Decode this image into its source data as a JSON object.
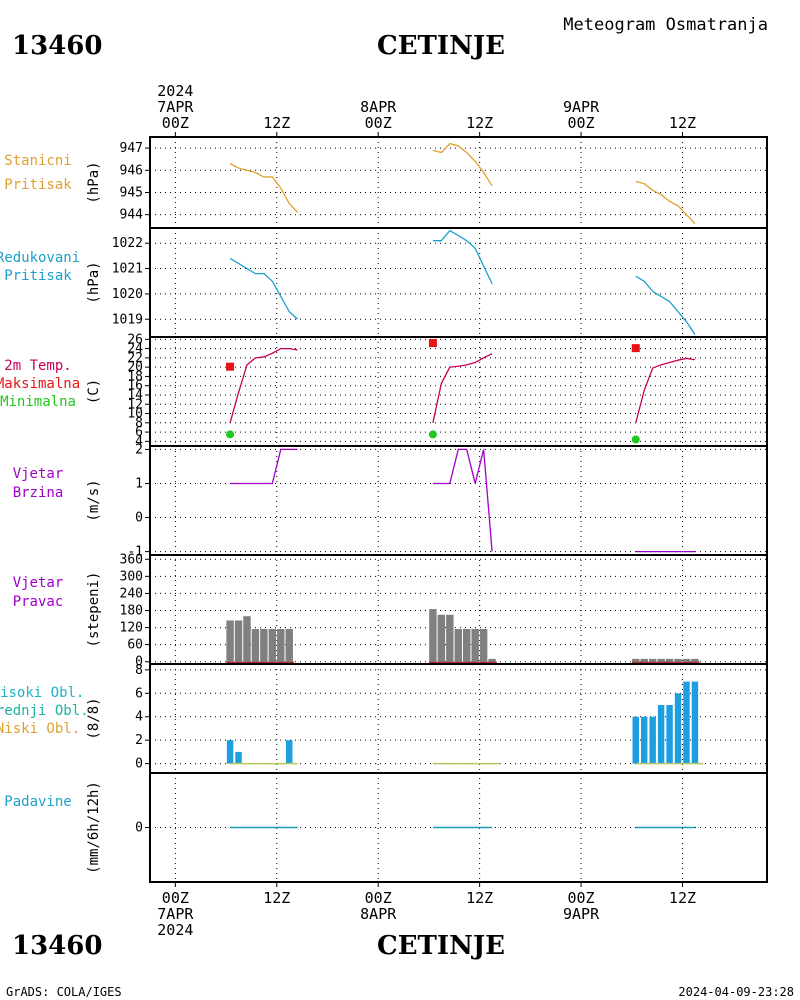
{
  "header": {
    "station_id": "13460",
    "station_name": "CETINJE",
    "product_title": "Meteogram Osmatranja"
  },
  "footer": {
    "station_id": "13460",
    "station_name": "CETINJE",
    "credit": "GrADS: COLA/IGES",
    "timestamp": "2024-04-09-23:28"
  },
  "time_axis": {
    "top_labels": [
      {
        "hour": 0,
        "lines": [
          "2024",
          "7APR",
          "00Z"
        ]
      },
      {
        "hour": 12,
        "lines": [
          "12Z"
        ]
      },
      {
        "hour": 24,
        "lines": [
          "8APR",
          "00Z"
        ]
      },
      {
        "hour": 36,
        "lines": [
          "12Z"
        ]
      },
      {
        "hour": 48,
        "lines": [
          "9APR",
          "00Z"
        ]
      },
      {
        "hour": 60,
        "lines": [
          "12Z"
        ]
      }
    ],
    "bottom_labels": [
      {
        "hour": 0,
        "lines": [
          "00Z",
          "7APR",
          "2024"
        ]
      },
      {
        "hour": 12,
        "lines": [
          "12Z"
        ]
      },
      {
        "hour": 24,
        "lines": [
          "00Z",
          "8APR"
        ]
      },
      {
        "hour": 36,
        "lines": [
          "12Z"
        ]
      },
      {
        "hour": 48,
        "lines": [
          "00Z",
          "9APR"
        ]
      },
      {
        "hour": 60,
        "lines": [
          "12Z"
        ]
      }
    ],
    "xlim": [
      -3,
      70
    ]
  },
  "colors": {
    "station_pressure": "#e0a030",
    "reduced_pressure": "#1ca0cc",
    "temperature": "#c8005a",
    "max_temp": "#e61414",
    "min_temp": "#1ec81e",
    "wind": "#a000c8",
    "direction_bars": "#808080",
    "direction_zero": "#b03030",
    "cloud_high": "#1c9ee0",
    "cloud_low": "#b4c864",
    "precip": "#1ca0b4",
    "precip_label": "#1ca0cc",
    "cloud_label_high": "#1cb4c8",
    "cloud_label_mid": "#1cb4a0",
    "cloud_label_low": "#e0a030",
    "wind_label": "#a000c8",
    "temp_label": "#e61414",
    "grid": "#000000"
  },
  "chart_data": [
    {
      "type": "line",
      "id": "station_pressure",
      "label_lines": [
        "Stanicni",
        "Pritisak"
      ],
      "ylabel": "(hPa)",
      "yticks": [
        944,
        945,
        946,
        947
      ],
      "ylim": [
        943.4,
        947.5
      ],
      "series": [
        {
          "values": [
            [
              6,
              946.3
            ],
            [
              7,
              946.1
            ],
            [
              8,
              946.0
            ],
            [
              9,
              945.9
            ],
            [
              10,
              945.7
            ],
            [
              11,
              945.7
            ],
            [
              12,
              945.2
            ],
            [
              13,
              944.5
            ],
            [
              14,
              944.1
            ]
          ]
        },
        {
          "values": [
            [
              30,
              946.9
            ],
            [
              31,
              946.8
            ],
            [
              32,
              947.2
            ],
            [
              33,
              947.1
            ],
            [
              34,
              946.8
            ],
            [
              35,
              946.4
            ],
            [
              36,
              945.9
            ],
            [
              37,
              945.3
            ]
          ]
        },
        {
          "values": [
            [
              54,
              945.5
            ],
            [
              55,
              945.4
            ],
            [
              56,
              945.1
            ],
            [
              57,
              944.9
            ],
            [
              58,
              944.6
            ],
            [
              59,
              944.4
            ],
            [
              60,
              944.0
            ],
            [
              61,
              943.6
            ]
          ]
        }
      ]
    },
    {
      "type": "line",
      "id": "reduced_pressure",
      "label_lines": [
        "Redukovani",
        "Pritisak"
      ],
      "ylabel": "(hPa)",
      "yticks": [
        1019,
        1020,
        1021,
        1022
      ],
      "ylim": [
        1018.3,
        1022.6
      ],
      "series": [
        {
          "values": [
            [
              6,
              1021.4
            ],
            [
              7,
              1021.2
            ],
            [
              8,
              1021.0
            ],
            [
              9,
              1020.8
            ],
            [
              10,
              1020.8
            ],
            [
              11,
              1020.5
            ],
            [
              12,
              1019.9
            ],
            [
              13,
              1019.3
            ],
            [
              14,
              1019.0
            ]
          ]
        },
        {
          "values": [
            [
              30,
              1022.1
            ],
            [
              31,
              1022.1
            ],
            [
              32,
              1022.5
            ],
            [
              33,
              1022.3
            ],
            [
              34,
              1022.1
            ],
            [
              35,
              1021.8
            ],
            [
              36,
              1021.1
            ],
            [
              37,
              1020.4
            ]
          ]
        },
        {
          "values": [
            [
              54,
              1020.7
            ],
            [
              55,
              1020.5
            ],
            [
              56,
              1020.1
            ],
            [
              57,
              1019.9
            ],
            [
              58,
              1019.7
            ],
            [
              59,
              1019.3
            ],
            [
              60,
              1018.9
            ],
            [
              61,
              1018.4
            ]
          ]
        }
      ]
    },
    {
      "type": "line",
      "id": "temperature",
      "label_lines": [
        "2m Temp.",
        "Maksimalna",
        "Minimalna"
      ],
      "ylabel": "(C)",
      "yticks": [
        4,
        6,
        8,
        10,
        12,
        14,
        16,
        18,
        20,
        22,
        24,
        26
      ],
      "ylim": [
        3,
        26.5
      ],
      "series": [
        {
          "values": [
            [
              6,
              8.0
            ],
            [
              7,
              14.5
            ],
            [
              8,
              20.5
            ],
            [
              9,
              22.0
            ],
            [
              10,
              22.2
            ],
            [
              11,
              23.0
            ],
            [
              12,
              24.0
            ],
            [
              13,
              24.0
            ],
            [
              14,
              23.7
            ]
          ]
        },
        {
          "values": [
            [
              30,
              8.0
            ],
            [
              31,
              16.5
            ],
            [
              32,
              20.0
            ],
            [
              33,
              20.2
            ],
            [
              34,
              20.5
            ],
            [
              35,
              21.0
            ],
            [
              36,
              22.0
            ],
            [
              37,
              22.9
            ]
          ]
        },
        {
          "values": [
            [
              54,
              8.0
            ],
            [
              55,
              15.0
            ],
            [
              56,
              19.8
            ],
            [
              57,
              20.5
            ],
            [
              58,
              21.0
            ],
            [
              59,
              21.5
            ],
            [
              60,
              21.9
            ],
            [
              61,
              21.6
            ]
          ]
        }
      ],
      "max_points": [
        [
          6,
          20.1
        ],
        [
          30,
          25.2
        ],
        [
          54,
          24.1
        ]
      ],
      "min_points": [
        [
          6,
          5.5
        ],
        [
          30,
          5.5
        ],
        [
          54,
          4.4
        ]
      ]
    },
    {
      "type": "line",
      "id": "wind_speed",
      "label_lines": [
        "Vjetar",
        "Brzina"
      ],
      "ylabel": "(m/s)",
      "yticks": [
        -1,
        0,
        1,
        2
      ],
      "ylim": [
        -1.1,
        2.1
      ],
      "series": [
        {
          "values": [
            [
              6,
              1
            ],
            [
              7,
              1
            ],
            [
              8,
              1
            ],
            [
              9,
              1
            ],
            [
              10,
              1
            ],
            [
              11,
              1
            ],
            [
              12,
              2
            ],
            [
              13,
              2
            ],
            [
              14,
              2
            ]
          ]
        },
        {
          "values": [
            [
              30,
              1
            ],
            [
              31,
              1
            ],
            [
              32,
              1
            ],
            [
              33,
              2
            ],
            [
              34,
              2
            ],
            [
              35,
              1
            ],
            [
              36,
              2
            ],
            [
              37,
              -1
            ]
          ]
        },
        {
          "values": [
            [
              54,
              -1
            ],
            [
              55,
              -1
            ],
            [
              56,
              -1
            ],
            [
              57,
              -1
            ],
            [
              58,
              -1
            ],
            [
              59,
              -1
            ],
            [
              60,
              -1
            ],
            [
              61,
              -1
            ]
          ]
        }
      ]
    },
    {
      "type": "bar",
      "id": "wind_direction",
      "label_lines": [
        "Vjetar",
        "Pravac"
      ],
      "ylabel": "(stepeni)",
      "yticks": [
        0,
        60,
        120,
        180,
        240,
        300,
        360
      ],
      "ylim": [
        -8,
        375
      ],
      "bars": [
        [
          6,
          145
        ],
        [
          7,
          145
        ],
        [
          8,
          160
        ],
        [
          9,
          115
        ],
        [
          10,
          115
        ],
        [
          11,
          115
        ],
        [
          12,
          115
        ],
        [
          13,
          115
        ],
        [
          30,
          185
        ],
        [
          31,
          165
        ],
        [
          32,
          165
        ],
        [
          33,
          115
        ],
        [
          34,
          115
        ],
        [
          35,
          115
        ],
        [
          36,
          115
        ],
        [
          37,
          10
        ],
        [
          54,
          10
        ],
        [
          55,
          10
        ],
        [
          56,
          10
        ],
        [
          57,
          10
        ],
        [
          58,
          10
        ],
        [
          59,
          10
        ],
        [
          60,
          10
        ],
        [
          61,
          10
        ]
      ]
    },
    {
      "type": "bar",
      "id": "cloud_cover",
      "label_lines": [
        "Visoki Obl.",
        "Srednji Obl.",
        "Niski Obl."
      ],
      "ylabel": "(8/8)",
      "yticks": [
        0,
        2,
        4,
        6,
        8
      ],
      "ylim": [
        -0.8,
        8.5
      ],
      "bars": [
        [
          6,
          2
        ],
        [
          7,
          1
        ],
        [
          8,
          0
        ],
        [
          9,
          0
        ],
        [
          10,
          0
        ],
        [
          11,
          0
        ],
        [
          12,
          0
        ],
        [
          13,
          2
        ],
        [
          30,
          0
        ],
        [
          31,
          0
        ],
        [
          32,
          0
        ],
        [
          33,
          0
        ],
        [
          34,
          0
        ],
        [
          35,
          0
        ],
        [
          36,
          0
        ],
        [
          37,
          0
        ],
        [
          54,
          4
        ],
        [
          55,
          4
        ],
        [
          56,
          4
        ],
        [
          57,
          5
        ],
        [
          58,
          5
        ],
        [
          59,
          6
        ],
        [
          60,
          7
        ],
        [
          61,
          7
        ]
      ]
    },
    {
      "type": "line",
      "id": "precipitation",
      "label_lines": [
        "Padavine"
      ],
      "ylabel": "(mm/6h/12h)",
      "yticks": [
        0
      ],
      "ylim": [
        -5,
        5
      ],
      "series": [
        {
          "values": [
            [
              6,
              0
            ],
            [
              14,
              0
            ]
          ]
        },
        {
          "values": [
            [
              30,
              0
            ],
            [
              37,
              0
            ]
          ]
        },
        {
          "values": [
            [
              54,
              0
            ],
            [
              61,
              0
            ]
          ]
        }
      ]
    }
  ]
}
